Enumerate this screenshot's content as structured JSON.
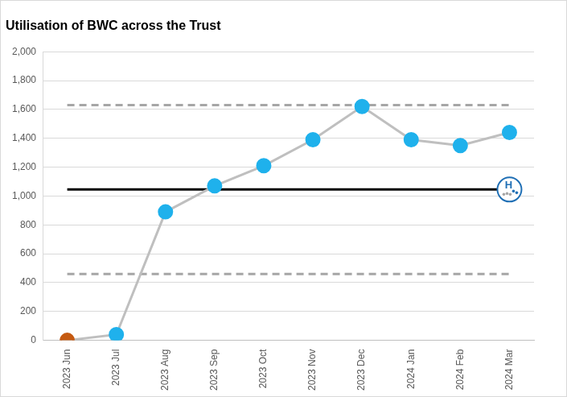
{
  "chart_data": {
    "type": "line",
    "title": "Utilisation of BWC across the Trust",
    "categories": [
      "2023 Jun",
      "2023 Jul",
      "2023 Aug",
      "2023 Sep",
      "2023 Oct",
      "2023 Nov",
      "2023 Dec",
      "2024 Jan",
      "2024 Feb",
      "2024 Mar"
    ],
    "series": [
      {
        "color": "#bfbfbf",
        "marker": "circle",
        "colors": [
          "#c55a11",
          "#1fb1ec",
          "#1fb1ec",
          "#1fb1ec",
          "#1fb1ec",
          "#1fb1ec",
          "#1fb1ec",
          "#1fb1ec",
          "#1fb1ec",
          "#1fb1ec"
        ],
        "values": [
          0,
          40,
          890,
          1070,
          1210,
          1390,
          1620,
          1390,
          1350,
          1440
        ]
      },
      {
        "color": "#000000",
        "marker": "none",
        "line_style": "solid",
        "values": [
          1045,
          1045,
          1045,
          1045,
          1045,
          1045,
          1045,
          1045,
          1045,
          1045
        ]
      },
      {
        "color": "#a6a6a6",
        "marker": "none",
        "line_style": "dashed",
        "values": [
          1630,
          1630,
          1630,
          1630,
          1630,
          1630,
          1630,
          1630,
          1630,
          1630
        ]
      },
      {
        "color": "#a6a6a6",
        "marker": "none",
        "line_style": "dashed",
        "values": [
          460,
          460,
          460,
          460,
          460,
          460,
          460,
          460,
          460,
          460
        ]
      }
    ],
    "annotations": [
      "H"
    ],
    "ylim": [
      0,
      2000
    ],
    "yticks": [
      0,
      200,
      400,
      600,
      800,
      {
        "value": 1000,
        "label": "1,000"
      },
      {
        "value": 1200,
        "label": "1,200"
      },
      {
        "value": 1400,
        "label": "1,400"
      },
      {
        "value": 1600,
        "label": "1,600"
      },
      {
        "value": 1800,
        "label": "1,800"
      },
      {
        "value": 2000,
        "label": "2,000"
      }
    ],
    "grid": true
  }
}
